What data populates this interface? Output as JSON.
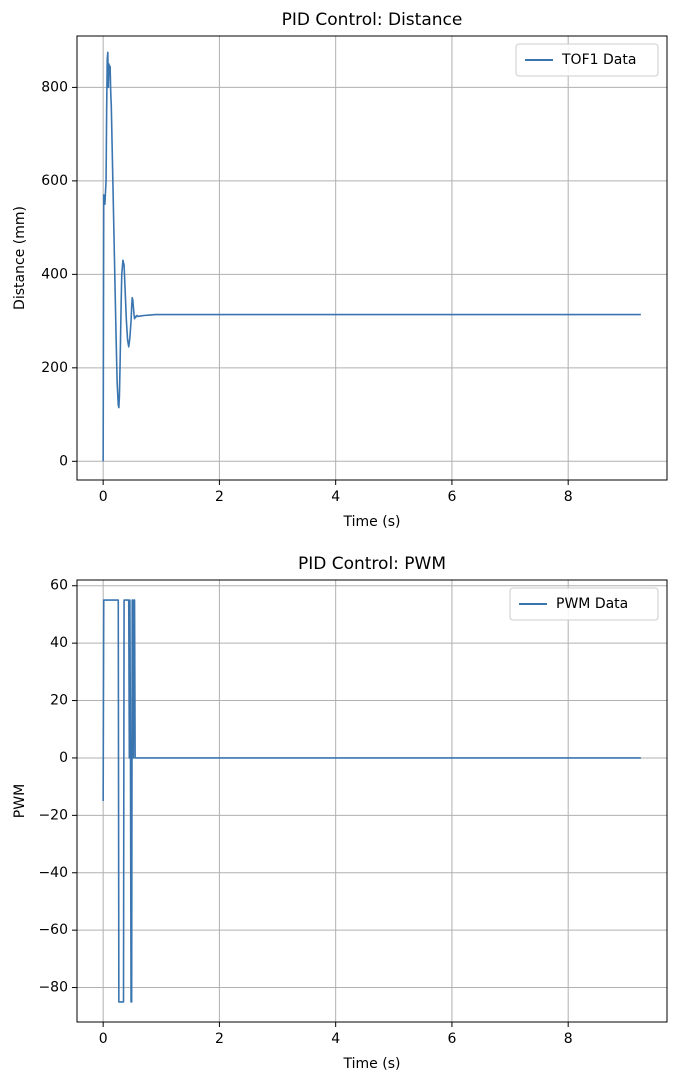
{
  "chart_data": [
    {
      "type": "line",
      "title": "PID Control: Distance",
      "xlabel": "Time (s)",
      "ylabel": "Distance (mm)",
      "xlim": [
        -0.45,
        9.7
      ],
      "ylim": [
        -40,
        910
      ],
      "xticks": [
        0,
        2,
        4,
        6,
        8
      ],
      "yticks": [
        0,
        200,
        400,
        600,
        800
      ],
      "grid": true,
      "legend_position": "top-right",
      "color": "#3a75b0",
      "series": [
        {
          "name": "TOF1 Data",
          "x": [
            0,
            0.01,
            0.02,
            0.03,
            0.04,
            0.05,
            0.06,
            0.07,
            0.08,
            0.09,
            0.1,
            0.11,
            0.12,
            0.13,
            0.14,
            0.15,
            0.16,
            0.18,
            0.2,
            0.22,
            0.24,
            0.26,
            0.27,
            0.28,
            0.29,
            0.3,
            0.31,
            0.32,
            0.34,
            0.36,
            0.38,
            0.4,
            0.42,
            0.44,
            0.46,
            0.48,
            0.49,
            0.5,
            0.51,
            0.52,
            0.53,
            0.54,
            0.55,
            0.56,
            0.58,
            0.6,
            0.65,
            0.7,
            0.8,
            0.9,
            1.0,
            2.0,
            4.0,
            6.0,
            8.0,
            9.25
          ],
          "y": [
            0,
            570,
            560,
            550,
            575,
            600,
            750,
            860,
            875,
            800,
            850,
            830,
            845,
            790,
            760,
            700,
            640,
            520,
            400,
            280,
            170,
            120,
            115,
            140,
            200,
            270,
            340,
            400,
            430,
            420,
            360,
            300,
            260,
            245,
            265,
            300,
            330,
            350,
            345,
            330,
            315,
            305,
            310,
            308,
            312,
            310,
            311,
            312,
            313,
            314,
            314,
            314,
            314,
            314,
            314,
            314
          ]
        }
      ]
    },
    {
      "type": "line",
      "title": "PID Control: PWM",
      "xlabel": "Time (s)",
      "ylabel": "PWM",
      "xlim": [
        -0.45,
        9.7
      ],
      "ylim": [
        -92,
        62
      ],
      "xticks": [
        0,
        2,
        4,
        6,
        8
      ],
      "yticks": [
        60,
        40,
        20,
        0,
        -20,
        -40,
        -60,
        -80
      ],
      "grid": true,
      "legend_position": "top-right",
      "color": "#3a75b0",
      "series": [
        {
          "name": "PWM Data",
          "x": [
            0,
            0.01,
            0.02,
            0.26,
            0.27,
            0.35,
            0.36,
            0.44,
            0.45,
            0.46,
            0.47,
            0.48,
            0.49,
            0.5,
            0.51,
            0.52,
            0.53,
            0.54,
            0.55,
            0.56,
            0.58,
            1.0,
            4.0,
            9.25
          ],
          "y": [
            -15,
            55,
            55,
            55,
            -85,
            -85,
            55,
            55,
            0,
            55,
            0,
            -85,
            -85,
            55,
            55,
            0,
            55,
            55,
            0,
            0,
            0,
            0,
            0,
            0
          ]
        }
      ]
    }
  ]
}
